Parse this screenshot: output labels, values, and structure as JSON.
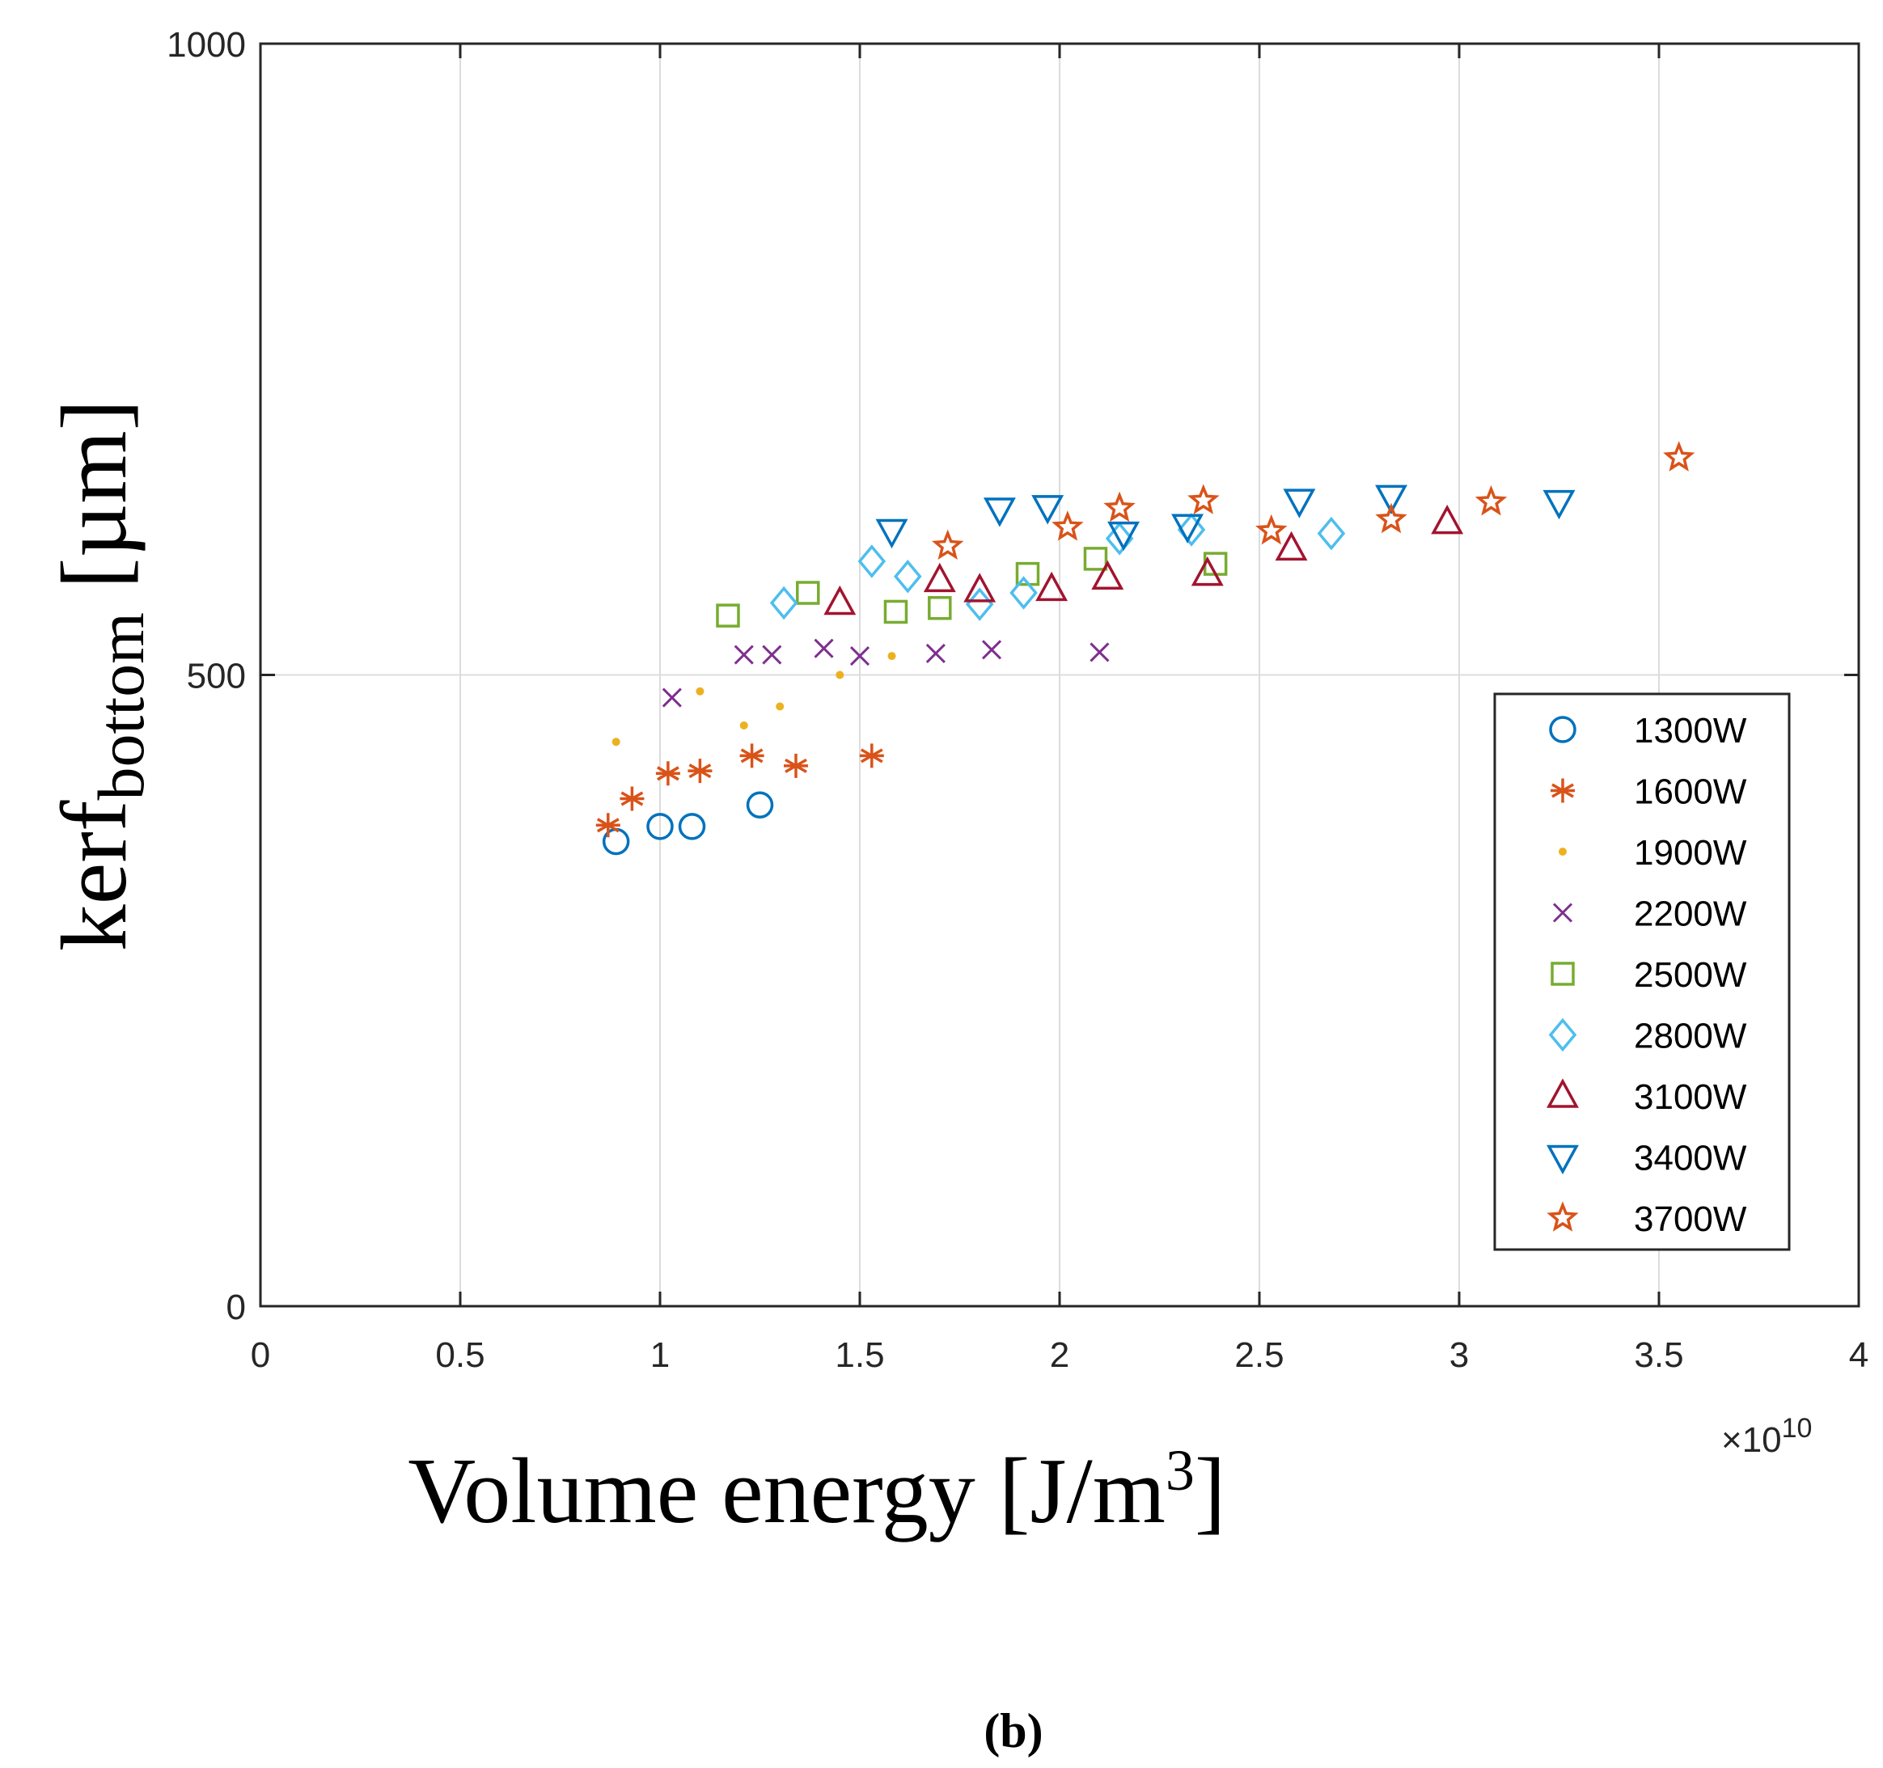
{
  "chart_data": {
    "type": "scatter",
    "title": "",
    "xlabel": "Volume energy [J/m",
    "xlabel_sup": "3",
    "xlabel_end": "]",
    "ylabel_main": "kerf",
    "ylabel_sub": "bottom",
    "ylabel_unit": " [µm]",
    "x_multiplier_base": "×10",
    "x_multiplier_exp": "10",
    "xlim": [
      0,
      4
    ],
    "ylim": [
      0,
      1000
    ],
    "xticks": [
      "0",
      "0.5",
      "1",
      "1.5",
      "2",
      "2.5",
      "3",
      "3.5",
      "4"
    ],
    "yticks": [
      "0",
      "500",
      "1000"
    ],
    "xtick_values": [
      0,
      0.5,
      1,
      1.5,
      2,
      2.5,
      3,
      3.5,
      4
    ],
    "ytick_values": [
      0,
      500,
      1000
    ],
    "grid": true,
    "legend_position": "right",
    "caption": "(b)",
    "series": [
      {
        "name": "1300W",
        "marker": "circle",
        "color": "#0072BD",
        "x": [
          0.89,
          1.0,
          1.08,
          1.25
        ],
        "y": [
          368,
          380,
          380,
          397
        ]
      },
      {
        "name": "1600W",
        "marker": "asterisk",
        "color": "#D95319",
        "x": [
          0.87,
          0.93,
          1.02,
          1.1,
          1.23,
          1.34,
          1.53
        ],
        "y": [
          381,
          402,
          422,
          424,
          436,
          428,
          436
        ]
      },
      {
        "name": "1900W",
        "marker": "dot",
        "color": "#EDB120",
        "x": [
          0.89,
          1.1,
          1.21,
          1.3,
          1.45,
          1.58
        ],
        "y": [
          447,
          487,
          460,
          475,
          500,
          515
        ]
      },
      {
        "name": "2200W",
        "marker": "x",
        "color": "#7E2F8E",
        "x": [
          1.03,
          1.21,
          1.28,
          1.41,
          1.5,
          1.69,
          1.83,
          2.1
        ],
        "y": [
          482,
          516,
          516,
          521,
          515,
          517,
          520,
          518
        ]
      },
      {
        "name": "2500W",
        "marker": "square",
        "color": "#77AC30",
        "x": [
          1.17,
          1.37,
          1.59,
          1.7,
          1.92,
          2.09,
          2.39
        ],
        "y": [
          547,
          565,
          550,
          553,
          580,
          592,
          588
        ]
      },
      {
        "name": "2800W",
        "marker": "diamond",
        "color": "#4DBEEE",
        "x": [
          1.31,
          1.53,
          1.62,
          1.8,
          1.91,
          2.15,
          2.33,
          2.68
        ],
        "y": [
          557,
          590,
          578,
          556,
          565,
          608,
          615,
          612
        ]
      },
      {
        "name": "3100W",
        "marker": "triangle",
        "color": "#A2142F",
        "x": [
          1.45,
          1.7,
          1.8,
          1.98,
          2.12,
          2.37,
          2.58,
          2.97
        ],
        "y": [
          557,
          575,
          567,
          568,
          577,
          580,
          600,
          621
        ]
      },
      {
        "name": "3400W",
        "marker": "triangle-down",
        "color": "#0072BD",
        "x": [
          1.58,
          1.85,
          1.97,
          2.16,
          2.32,
          2.6,
          2.83,
          3.25
        ],
        "y": [
          614,
          631,
          633,
          612,
          618,
          638,
          641,
          637
        ]
      },
      {
        "name": "3700W",
        "marker": "pentagram",
        "color": "#D95319",
        "x": [
          1.72,
          2.02,
          2.15,
          2.36,
          2.53,
          2.83,
          3.08,
          3.55
        ],
        "y": [
          602,
          617,
          632,
          638,
          614,
          623,
          637,
          672
        ]
      }
    ]
  }
}
